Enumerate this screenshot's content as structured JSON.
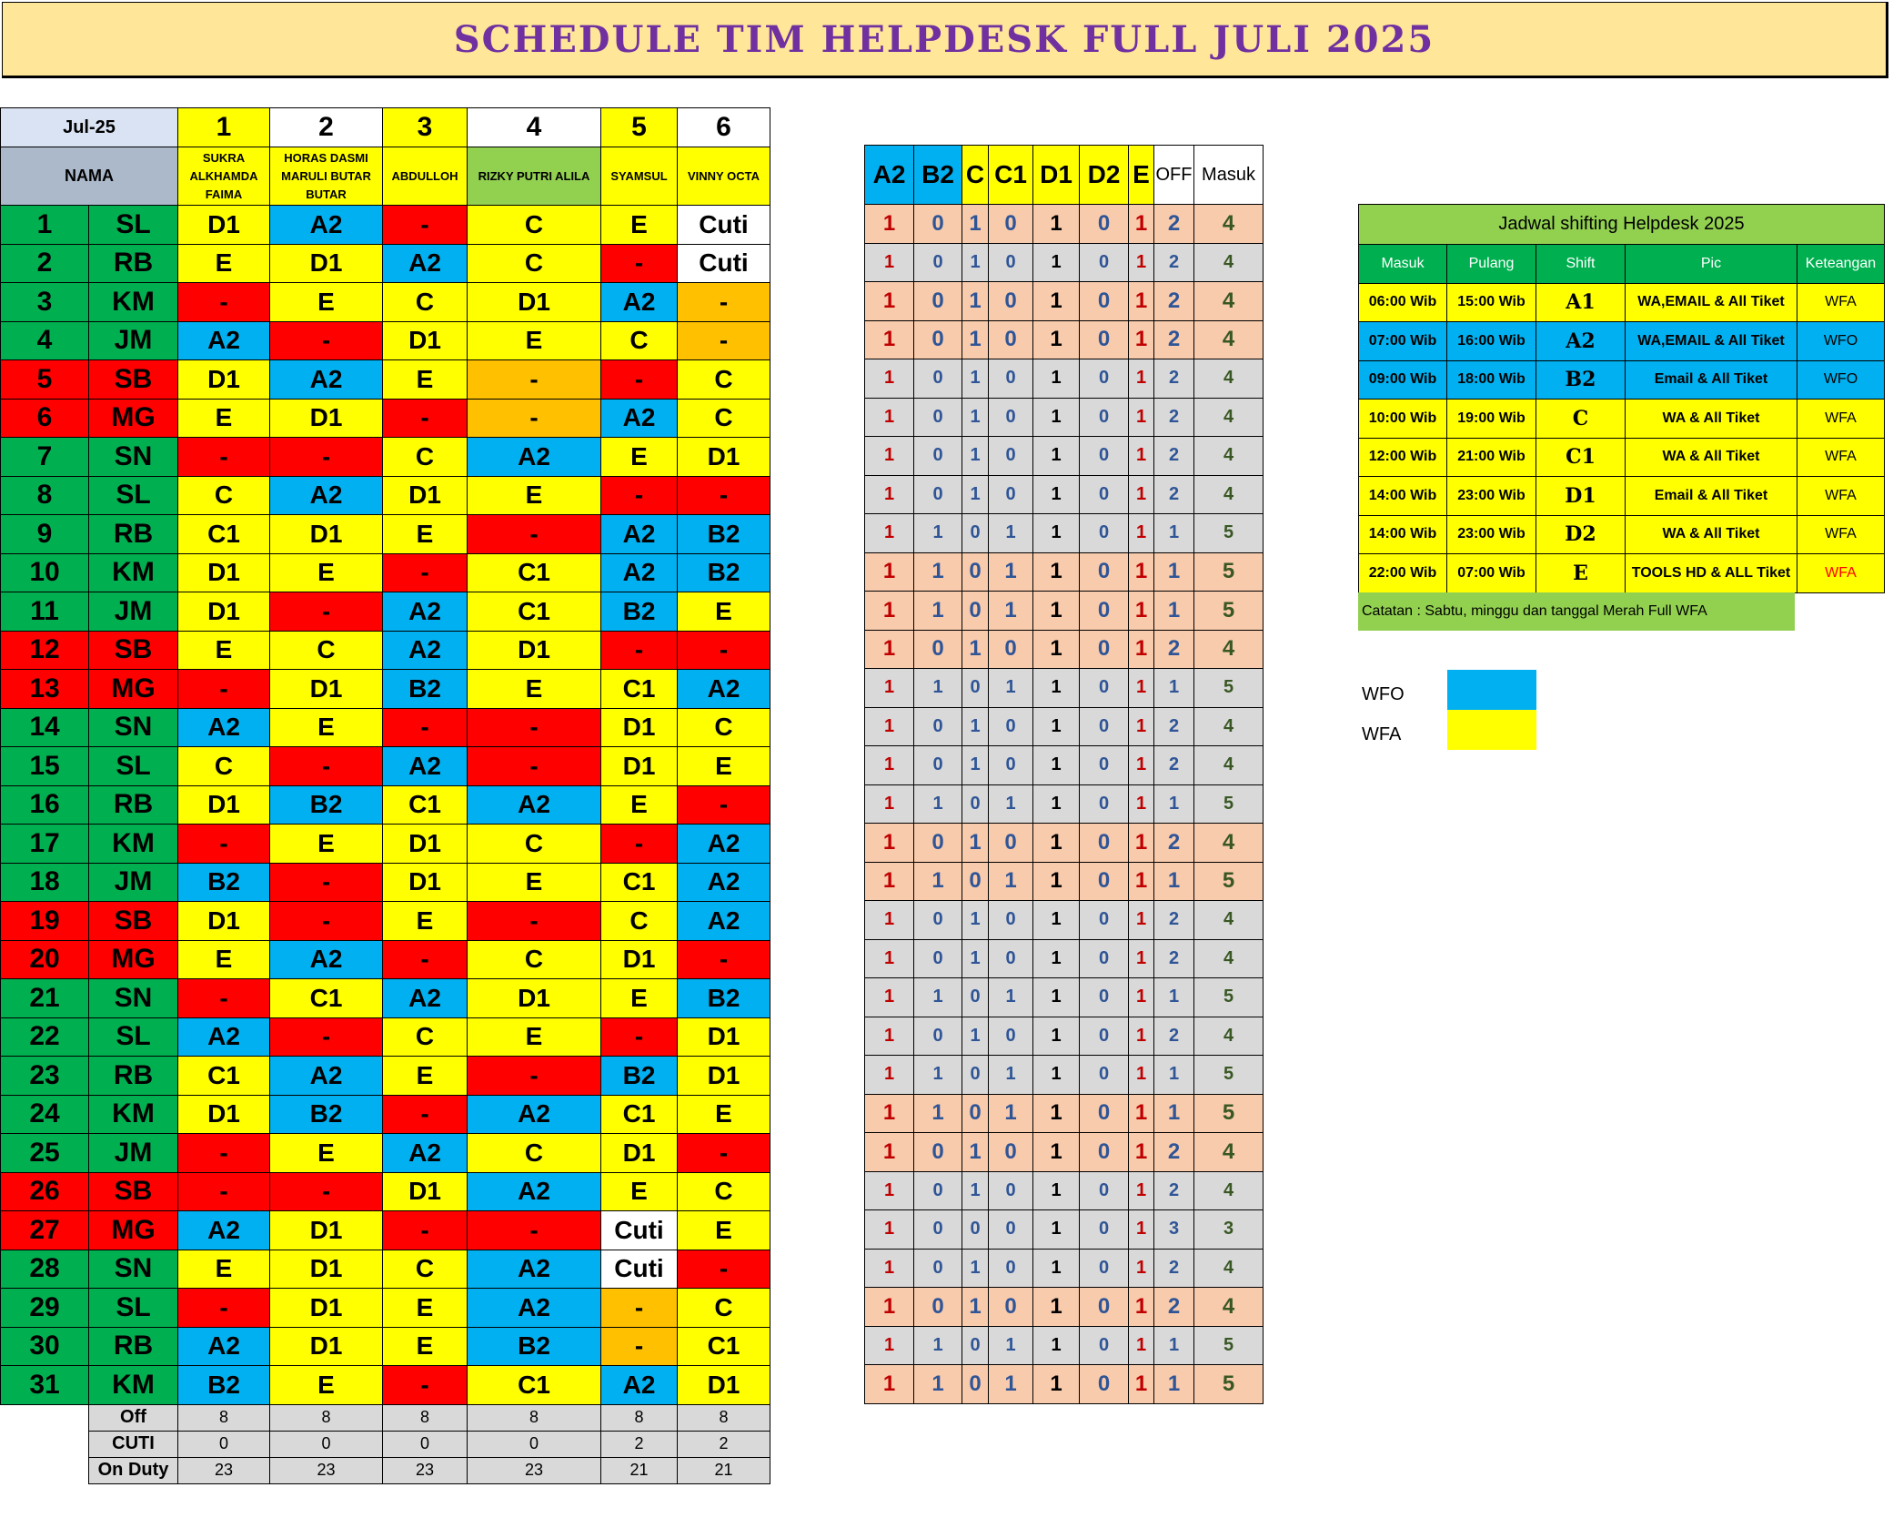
{
  "title": "SCHEDULE TIM HELPDESK FULL JULI 2025",
  "schedule": {
    "month_label": "Jul-25",
    "nama_label": "NAMA",
    "columns": [
      {
        "num": "1",
        "name": "SUKRA ALKHAMDA FAIMA"
      },
      {
        "num": "2",
        "name": "HORAS DASMI MARULI BUTAR BUTAR"
      },
      {
        "num": "3",
        "name": "ABDULLOH"
      },
      {
        "num": "4",
        "name": "RIZKY PUTRI ALILA"
      },
      {
        "num": "5",
        "name": "SYAMSUL"
      },
      {
        "num": "6",
        "name": "VINNY OCTA"
      }
    ],
    "rows": [
      {
        "day": "1",
        "init": "SL",
        "shifts": [
          "D1",
          "A2",
          "-",
          "C",
          "E",
          "Cuti"
        ]
      },
      {
        "day": "2",
        "init": "RB",
        "shifts": [
          "E",
          "D1",
          "A2",
          "C",
          "-",
          "Cuti"
        ]
      },
      {
        "day": "3",
        "init": "KM",
        "shifts": [
          "-",
          "E",
          "C",
          "D1",
          "A2",
          "-"
        ]
      },
      {
        "day": "4",
        "init": "JM",
        "shifts": [
          "A2",
          "-",
          "D1",
          "E",
          "C",
          "-"
        ]
      },
      {
        "day": "5",
        "init": "SB",
        "shifts": [
          "D1",
          "A2",
          "E",
          "-",
          "-",
          "C"
        ]
      },
      {
        "day": "6",
        "init": "MG",
        "shifts": [
          "E",
          "D1",
          "-",
          "-",
          "A2",
          "C"
        ]
      },
      {
        "day": "7",
        "init": "SN",
        "shifts": [
          "-",
          "-",
          "C",
          "A2",
          "E",
          "D1"
        ]
      },
      {
        "day": "8",
        "init": "SL",
        "shifts": [
          "C",
          "A2",
          "D1",
          "E",
          "-",
          "-"
        ]
      },
      {
        "day": "9",
        "init": "RB",
        "shifts": [
          "C1",
          "D1",
          "E",
          "-",
          "A2",
          "B2"
        ]
      },
      {
        "day": "10",
        "init": "KM",
        "shifts": [
          "D1",
          "E",
          "-",
          "C1",
          "A2",
          "B2"
        ]
      },
      {
        "day": "11",
        "init": "JM",
        "shifts": [
          "D1",
          "-",
          "A2",
          "C1",
          "B2",
          "E"
        ]
      },
      {
        "day": "12",
        "init": "SB",
        "shifts": [
          "E",
          "C",
          "A2",
          "D1",
          "-",
          "-"
        ]
      },
      {
        "day": "13",
        "init": "MG",
        "shifts": [
          "-",
          "D1",
          "B2",
          "E",
          "C1",
          "A2"
        ]
      },
      {
        "day": "14",
        "init": "SN",
        "shifts": [
          "A2",
          "E",
          "-",
          "-",
          "D1",
          "C"
        ]
      },
      {
        "day": "15",
        "init": "SL",
        "shifts": [
          "C",
          "-",
          "A2",
          "-",
          "D1",
          "E"
        ]
      },
      {
        "day": "16",
        "init": "RB",
        "shifts": [
          "D1",
          "B2",
          "C1",
          "A2",
          "E",
          "-"
        ]
      },
      {
        "day": "17",
        "init": "KM",
        "shifts": [
          "-",
          "E",
          "D1",
          "C",
          "-",
          "A2"
        ]
      },
      {
        "day": "18",
        "init": "JM",
        "shifts": [
          "B2",
          "-",
          "D1",
          "E",
          "C1",
          "A2"
        ]
      },
      {
        "day": "19",
        "init": "SB",
        "shifts": [
          "D1",
          "-",
          "E",
          "-",
          "C",
          "A2"
        ]
      },
      {
        "day": "20",
        "init": "MG",
        "shifts": [
          "E",
          "A2",
          "-",
          "C",
          "D1",
          "-"
        ]
      },
      {
        "day": "21",
        "init": "SN",
        "shifts": [
          "-",
          "C1",
          "A2",
          "D1",
          "E",
          "B2"
        ]
      },
      {
        "day": "22",
        "init": "SL",
        "shifts": [
          "A2",
          "-",
          "C",
          "E",
          "-",
          "D1"
        ]
      },
      {
        "day": "23",
        "init": "RB",
        "shifts": [
          "C1",
          "A2",
          "E",
          "-",
          "B2",
          "D1"
        ]
      },
      {
        "day": "24",
        "init": "KM",
        "shifts": [
          "D1",
          "B2",
          "-",
          "A2",
          "C1",
          "E"
        ]
      },
      {
        "day": "25",
        "init": "JM",
        "shifts": [
          "-",
          "E",
          "A2",
          "C",
          "D1",
          "-"
        ]
      },
      {
        "day": "26",
        "init": "SB",
        "shifts": [
          "-",
          "-",
          "D1",
          "A2",
          "E",
          "C"
        ]
      },
      {
        "day": "27",
        "init": "MG",
        "shifts": [
          "A2",
          "D1",
          "-",
          "-",
          "Cuti",
          "E"
        ]
      },
      {
        "day": "28",
        "init": "SN",
        "shifts": [
          "E",
          "D1",
          "C",
          "A2",
          "Cuti",
          "-"
        ]
      },
      {
        "day": "29",
        "init": "SL",
        "shifts": [
          "-",
          "D1",
          "E",
          "A2",
          "-",
          "C"
        ]
      },
      {
        "day": "30",
        "init": "RB",
        "shifts": [
          "A2",
          "D1",
          "E",
          "B2",
          "-",
          "C1"
        ]
      },
      {
        "day": "31",
        "init": "KM",
        "shifts": [
          "B2",
          "E",
          "-",
          "C1",
          "A2",
          "D1"
        ]
      }
    ],
    "totals": [
      {
        "label": "Off",
        "values": [
          "8",
          "8",
          "8",
          "8",
          "8",
          "8"
        ]
      },
      {
        "label": "CUTI",
        "values": [
          "0",
          "0",
          "0",
          "0",
          "2",
          "2"
        ]
      },
      {
        "label": "On Duty",
        "values": [
          "23",
          "23",
          "23",
          "23",
          "21",
          "21"
        ]
      }
    ]
  },
  "counts": {
    "headers": [
      "A2",
      "B2",
      "C",
      "C1",
      "D1",
      "D2",
      "E",
      "OFF",
      "Masuk"
    ],
    "rows": [
      [
        "1",
        "0",
        "1",
        "0",
        "1",
        "0",
        "1",
        "2",
        "4"
      ],
      [
        "1",
        "0",
        "1",
        "0",
        "1",
        "0",
        "1",
        "2",
        "4"
      ],
      [
        "1",
        "0",
        "1",
        "0",
        "1",
        "0",
        "1",
        "2",
        "4"
      ],
      [
        "1",
        "0",
        "1",
        "0",
        "1",
        "0",
        "1",
        "2",
        "4"
      ],
      [
        "1",
        "0",
        "1",
        "0",
        "1",
        "0",
        "1",
        "2",
        "4"
      ],
      [
        "1",
        "0",
        "1",
        "0",
        "1",
        "0",
        "1",
        "2",
        "4"
      ],
      [
        "1",
        "0",
        "1",
        "0",
        "1",
        "0",
        "1",
        "2",
        "4"
      ],
      [
        "1",
        "0",
        "1",
        "0",
        "1",
        "0",
        "1",
        "2",
        "4"
      ],
      [
        "1",
        "1",
        "0",
        "1",
        "1",
        "0",
        "1",
        "1",
        "5"
      ],
      [
        "1",
        "1",
        "0",
        "1",
        "1",
        "0",
        "1",
        "1",
        "5"
      ],
      [
        "1",
        "1",
        "0",
        "1",
        "1",
        "0",
        "1",
        "1",
        "5"
      ],
      [
        "1",
        "0",
        "1",
        "0",
        "1",
        "0",
        "1",
        "2",
        "4"
      ],
      [
        "1",
        "1",
        "0",
        "1",
        "1",
        "0",
        "1",
        "1",
        "5"
      ],
      [
        "1",
        "0",
        "1",
        "0",
        "1",
        "0",
        "1",
        "2",
        "4"
      ],
      [
        "1",
        "0",
        "1",
        "0",
        "1",
        "0",
        "1",
        "2",
        "4"
      ],
      [
        "1",
        "1",
        "0",
        "1",
        "1",
        "0",
        "1",
        "1",
        "5"
      ],
      [
        "1",
        "0",
        "1",
        "0",
        "1",
        "0",
        "1",
        "2",
        "4"
      ],
      [
        "1",
        "1",
        "0",
        "1",
        "1",
        "0",
        "1",
        "1",
        "5"
      ],
      [
        "1",
        "0",
        "1",
        "0",
        "1",
        "0",
        "1",
        "2",
        "4"
      ],
      [
        "1",
        "0",
        "1",
        "0",
        "1",
        "0",
        "1",
        "2",
        "4"
      ],
      [
        "1",
        "1",
        "0",
        "1",
        "1",
        "0",
        "1",
        "1",
        "5"
      ],
      [
        "1",
        "0",
        "1",
        "0",
        "1",
        "0",
        "1",
        "2",
        "4"
      ],
      [
        "1",
        "1",
        "0",
        "1",
        "1",
        "0",
        "1",
        "1",
        "5"
      ],
      [
        "1",
        "1",
        "0",
        "1",
        "1",
        "0",
        "1",
        "1",
        "5"
      ],
      [
        "1",
        "0",
        "1",
        "0",
        "1",
        "0",
        "1",
        "2",
        "4"
      ],
      [
        "1",
        "0",
        "1",
        "0",
        "1",
        "0",
        "1",
        "2",
        "4"
      ],
      [
        "1",
        "0",
        "0",
        "0",
        "1",
        "0",
        "1",
        "3",
        "3"
      ],
      [
        "1",
        "0",
        "1",
        "0",
        "1",
        "0",
        "1",
        "2",
        "4"
      ],
      [
        "1",
        "0",
        "1",
        "0",
        "1",
        "0",
        "1",
        "2",
        "4"
      ],
      [
        "1",
        "1",
        "0",
        "1",
        "1",
        "0",
        "1",
        "1",
        "5"
      ],
      [
        "1",
        "1",
        "0",
        "1",
        "1",
        "0",
        "1",
        "1",
        "5"
      ]
    ]
  },
  "shift_legend": {
    "caption": "Jadwal shifting Helpdesk 2025",
    "headers": [
      "Masuk",
      "Pulang",
      "Shift",
      "Pic",
      "Keteangan"
    ],
    "rows": [
      {
        "masuk": "06:00 Wib",
        "pulang": "15:00 Wib",
        "shift": "A1",
        "pic": "WA,EMAIL & All Tiket",
        "ket": "WFA"
      },
      {
        "masuk": "07:00 Wib",
        "pulang": "16:00 Wib",
        "shift": "A2",
        "pic": "WA,EMAIL & All Tiket",
        "ket": "WFO"
      },
      {
        "masuk": "09:00 Wib",
        "pulang": "18:00 Wib",
        "shift": "B2",
        "pic": "Email & All Tiket",
        "ket": "WFO"
      },
      {
        "masuk": "10:00  Wib",
        "pulang": "19:00 Wib",
        "shift": "C",
        "pic": "WA & All Tiket",
        "ket": "WFA"
      },
      {
        "masuk": "12:00  Wib",
        "pulang": "21:00 Wib",
        "shift": "C1",
        "pic": "WA & All Tiket",
        "ket": "WFA"
      },
      {
        "masuk": "14:00  Wib",
        "pulang": "23:00 Wib",
        "shift": "D1",
        "pic": "Email & All Tiket",
        "ket": "WFA"
      },
      {
        "masuk": "14:00  Wib",
        "pulang": "23:00 Wib",
        "shift": "D2",
        "pic": "WA & All Tiket",
        "ket": "WFA"
      },
      {
        "masuk": "22:00 Wib",
        "pulang": "07:00 Wib",
        "shift": "E",
        "pic": "TOOLS HD & ALL Tiket",
        "ket": "WFA"
      }
    ],
    "note": "Catatan : Sabtu, minggu dan tanggal Merah Full WFA"
  },
  "key": {
    "wfo_label": "WFO",
    "wfa_label": "WFA",
    "wfo_color": "#00B0F0",
    "wfa_color": "#FFFF00"
  },
  "colors": {
    "A2": "#00B0F0",
    "B2": "#00B0F0",
    "C": "#FFFF00",
    "C1": "#FFFF00",
    "D1": "#FFFF00",
    "E": "#FFFF00",
    "off": "#FF0000",
    "off_alt": "#FFC000",
    "cuti": "#FFFFFF",
    "weekday": "#00B050",
    "weekend": "#FF0000"
  }
}
